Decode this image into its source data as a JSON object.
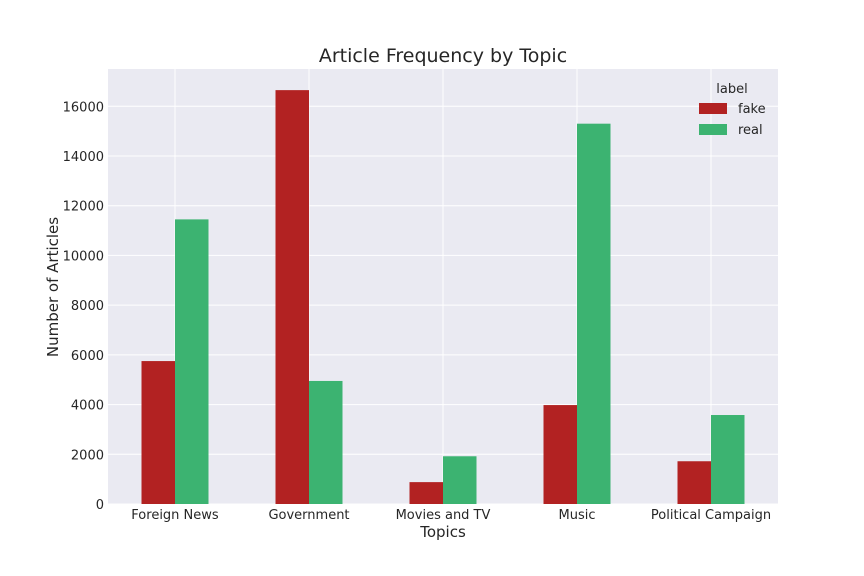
{
  "chart_data": {
    "type": "bar",
    "title": "Article Frequency by Topic",
    "xlabel": "Topics",
    "ylabel": "Number of Articles",
    "categories": [
      "Foreign News",
      "Government",
      "Movies and TV",
      "Music",
      "Political Campaign"
    ],
    "series": [
      {
        "name": "fake",
        "color": "#b22222",
        "values": [
          5750,
          16650,
          880,
          3980,
          1720
        ]
      },
      {
        "name": "real",
        "color": "#3cb371",
        "values": [
          11450,
          4950,
          1920,
          15300,
          3580
        ]
      }
    ],
    "ylim": [
      0,
      17500
    ],
    "yticks": [
      0,
      2000,
      4000,
      6000,
      8000,
      10000,
      12000,
      14000,
      16000
    ],
    "grid": true,
    "legend": {
      "title": "label",
      "placement": "top-right"
    },
    "background": "#eaeaf2"
  }
}
